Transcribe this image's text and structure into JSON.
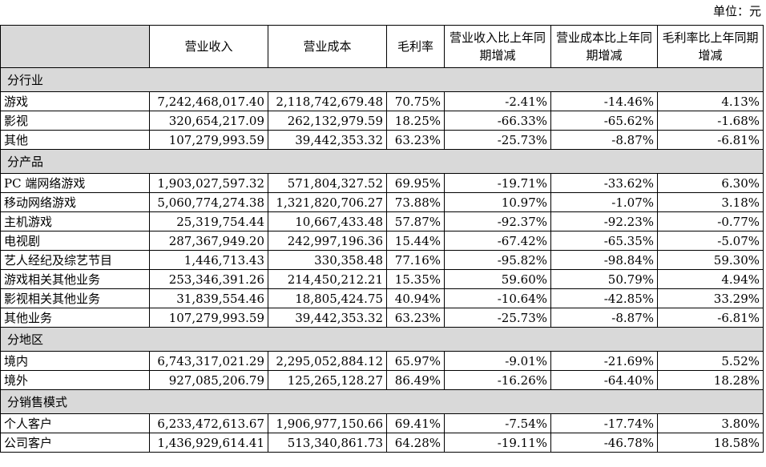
{
  "unit_note": "单位：元",
  "headers": [
    "",
    "营业收入",
    "营业成本",
    "毛利率",
    "营业收入比上年同期增减",
    "营业成本比上年同期增减",
    "毛利率比上年同期增减"
  ],
  "sections": [
    {
      "title": "分行业",
      "rows": [
        [
          "游戏",
          "7,242,468,017.40",
          "2,118,742,679.48",
          "70.75%",
          "-2.41%",
          "-14.46%",
          "4.13%"
        ],
        [
          "影视",
          "320,654,217.09",
          "262,132,979.59",
          "18.25%",
          "-66.33%",
          "-65.62%",
          "-1.68%"
        ],
        [
          "其他",
          "107,279,993.59",
          "39,442,353.32",
          "63.23%",
          "-25.73%",
          "-8.87%",
          "-6.81%"
        ]
      ]
    },
    {
      "title": "分产品",
      "rows": [
        [
          "PC 端网络游戏",
          "1,903,027,597.32",
          "571,804,327.52",
          "69.95%",
          "-19.71%",
          "-33.62%",
          "6.30%"
        ],
        [
          "移动网络游戏",
          "5,060,774,274.38",
          "1,321,820,706.27",
          "73.88%",
          "10.97%",
          "-1.07%",
          "3.18%"
        ],
        [
          "主机游戏",
          "25,319,754.44",
          "10,667,433.48",
          "57.87%",
          "-92.37%",
          "-92.23%",
          "-0.77%"
        ],
        [
          "电视剧",
          "287,367,949.20",
          "242,997,196.36",
          "15.44%",
          "-67.42%",
          "-65.35%",
          "-5.07%"
        ],
        [
          "艺人经纪及综艺节目",
          "1,446,713.43",
          "330,358.48",
          "77.16%",
          "-95.82%",
          "-98.84%",
          "59.30%"
        ],
        [
          "游戏相关其他业务",
          "253,346,391.26",
          "214,450,212.21",
          "15.35%",
          "59.60%",
          "50.79%",
          "4.94%"
        ],
        [
          "影视相关其他业务",
          "31,839,554.46",
          "18,805,424.75",
          "40.94%",
          "-10.64%",
          "-42.85%",
          "33.29%"
        ],
        [
          "其他业务",
          "107,279,993.59",
          "39,442,353.32",
          "63.23%",
          "-25.73%",
          "-8.87%",
          "-6.81%"
        ]
      ]
    },
    {
      "title": "分地区",
      "rows": [
        [
          "境内",
          "6,743,317,021.29",
          "2,295,052,884.12",
          "65.97%",
          "-9.01%",
          "-21.69%",
          "5.52%"
        ],
        [
          "境外",
          "927,085,206.79",
          "125,265,128.27",
          "86.49%",
          "-16.26%",
          "-64.40%",
          "18.28%"
        ]
      ]
    },
    {
      "title": "分销售模式",
      "rows": [
        [
          "个人客户",
          "6,233,472,613.67",
          "1,906,977,150.66",
          "69.41%",
          "-7.54%",
          "-17.74%",
          "3.80%"
        ],
        [
          "公司客户",
          "1,436,929,614.41",
          "513,340,861.73",
          "64.28%",
          "-19.11%",
          "-46.78%",
          "18.58%"
        ]
      ]
    }
  ]
}
